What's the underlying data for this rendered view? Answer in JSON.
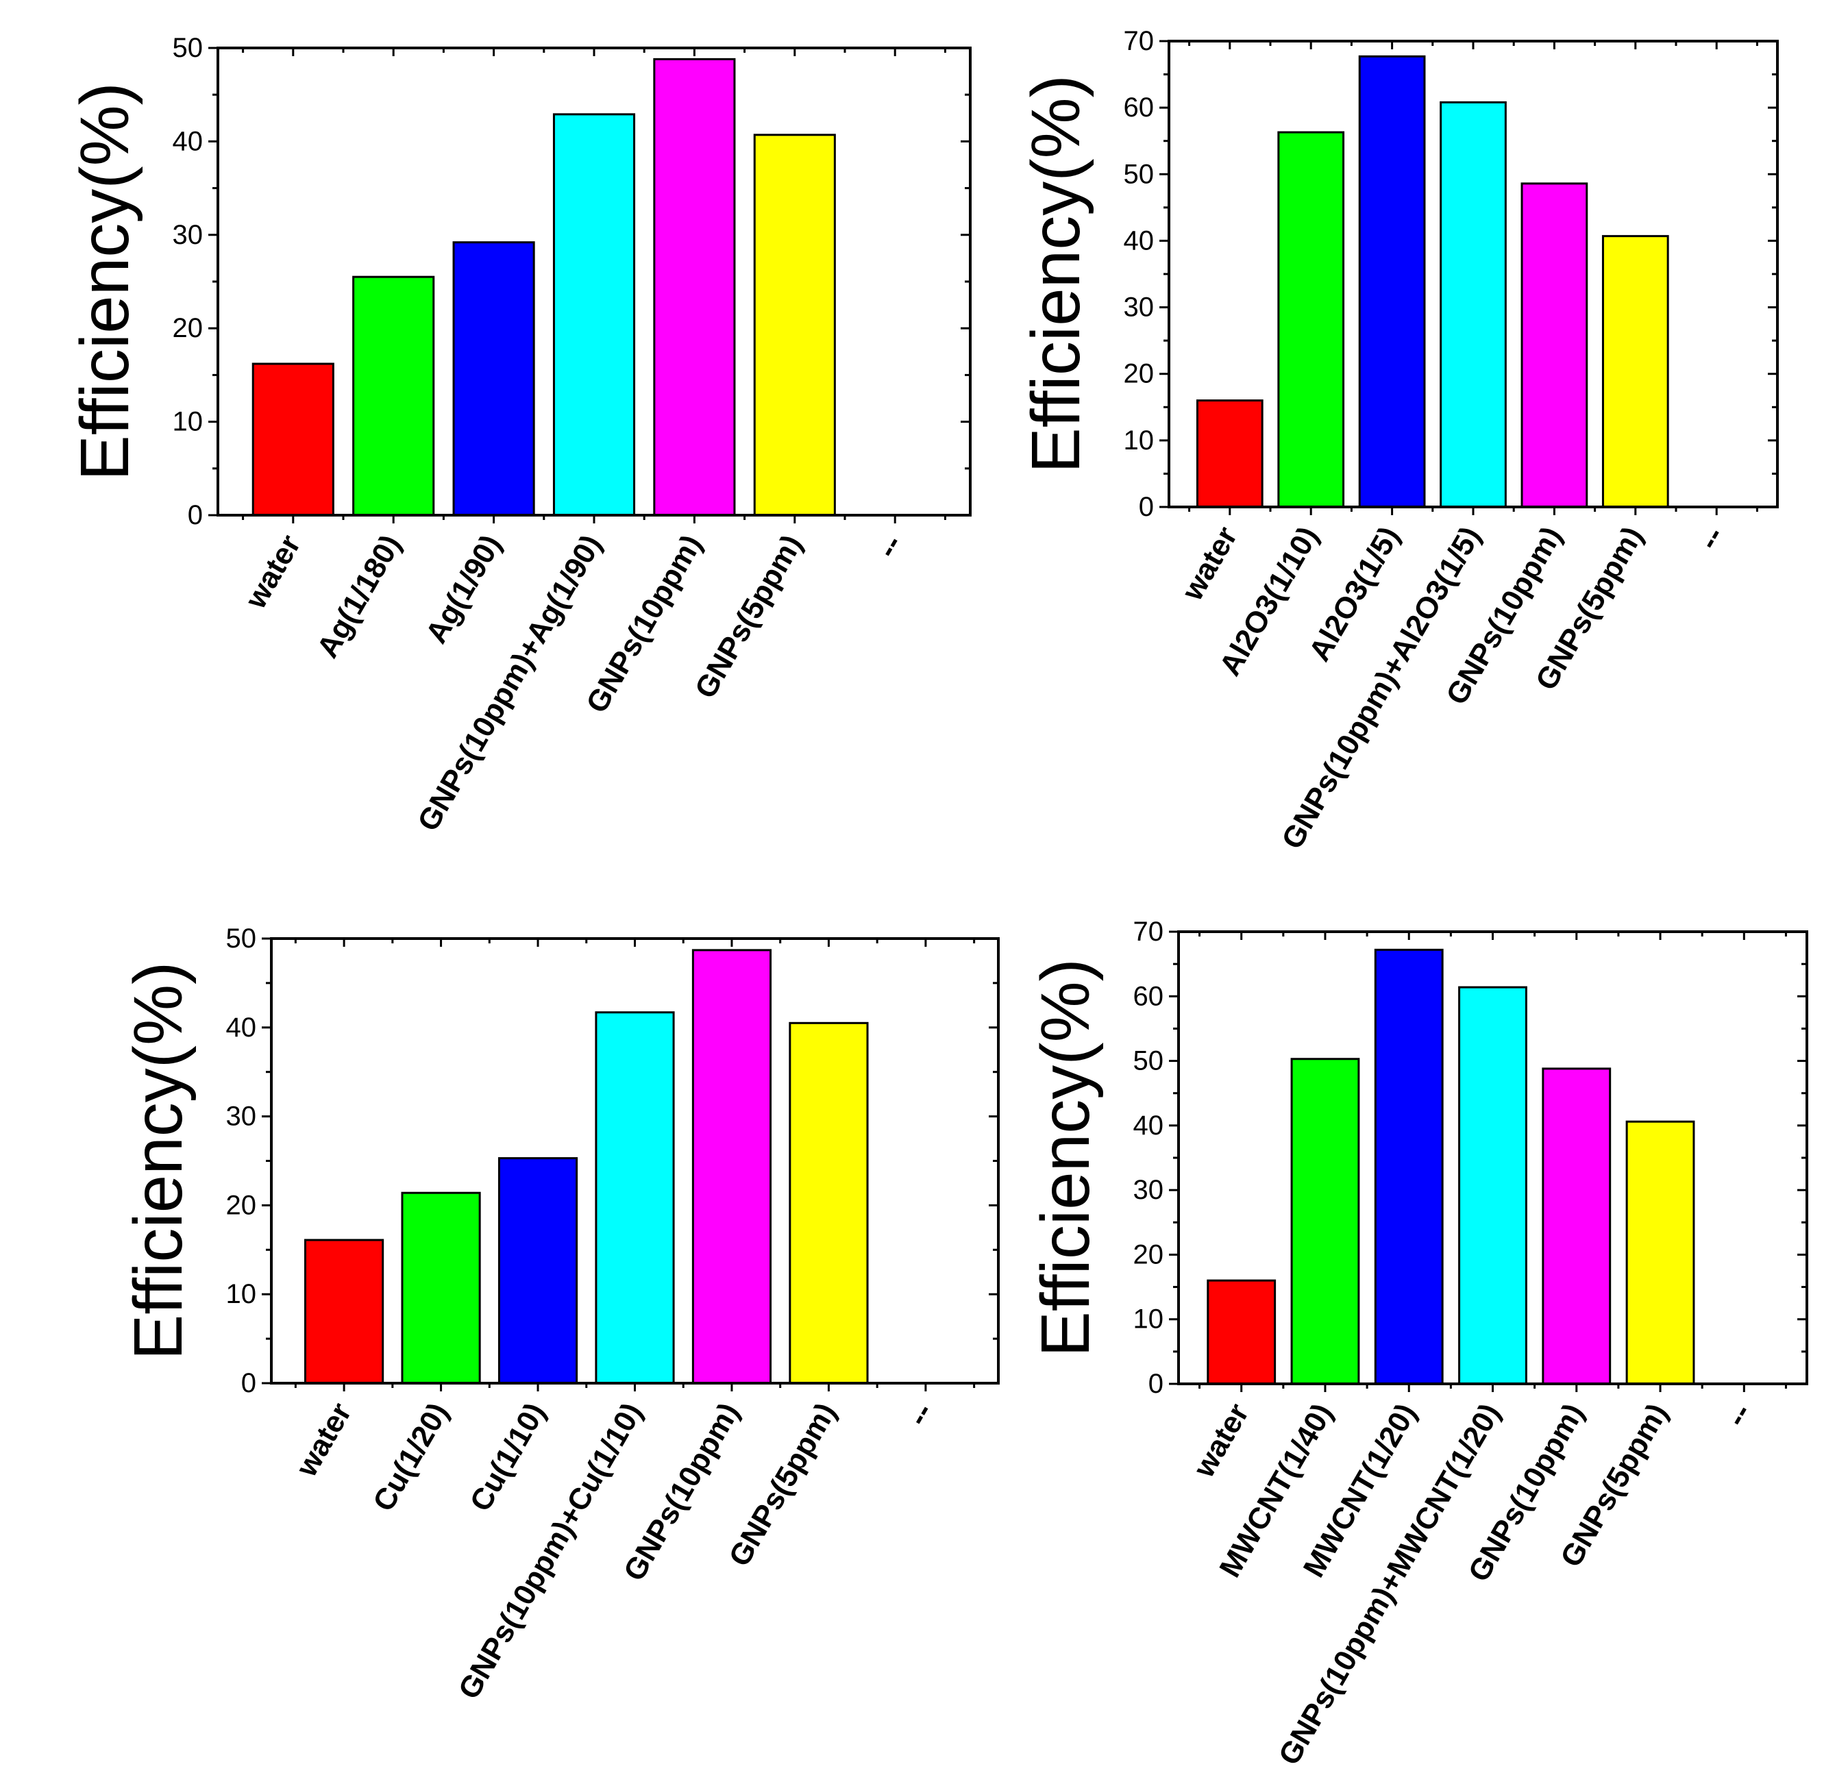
{
  "chart_data": [
    {
      "type": "bar",
      "title": "",
      "xlabel": "",
      "ylabel": "Efficiency(%)",
      "ylim": [
        0,
        50
      ],
      "yticks": [
        0,
        10,
        20,
        30,
        40,
        50
      ],
      "categories": [
        "water",
        "Ag(1/180)",
        "Ag(1/90)",
        "GNPs(10ppm)+Ag(1/90)",
        "GNPs(10ppm)",
        "GNPs(5ppm)",
        "--"
      ],
      "values": [
        16.2,
        25.5,
        29.2,
        42.9,
        48.8,
        40.7,
        null
      ],
      "colors": [
        "#ff0000",
        "#00ff00",
        "#0000ff",
        "#00ffff",
        "#ff00ff",
        "#ffff00",
        null
      ]
    },
    {
      "type": "bar",
      "title": "",
      "xlabel": "",
      "ylabel": "Efficiency(%)",
      "ylim": [
        0,
        70
      ],
      "yticks": [
        0,
        10,
        20,
        30,
        40,
        50,
        60,
        70
      ],
      "categories": [
        "water",
        "Al2O3(1/10)",
        "Al2O3(1/5)",
        "GNPs(10ppm)+Al2O3(1/5)",
        "GNPs(10ppm)",
        "GNPs(5ppm)",
        "--"
      ],
      "values": [
        16.0,
        56.3,
        67.7,
        60.8,
        48.6,
        40.7,
        null
      ],
      "colors": [
        "#ff0000",
        "#00ff00",
        "#0000ff",
        "#00ffff",
        "#ff00ff",
        "#ffff00",
        null
      ]
    },
    {
      "type": "bar",
      "title": "",
      "xlabel": "",
      "ylabel": "Efficiency(%)",
      "ylim": [
        0,
        50
      ],
      "yticks": [
        0,
        10,
        20,
        30,
        40,
        50
      ],
      "categories": [
        "water",
        "Cu(1/20)",
        "Cu(1/10)",
        "GNPs(10ppm)+Cu(1/10)",
        "GNPs(10ppm)",
        "GNPs(5ppm)",
        "--"
      ],
      "values": [
        16.1,
        21.4,
        25.3,
        41.7,
        48.7,
        40.5,
        null
      ],
      "colors": [
        "#ff0000",
        "#00ff00",
        "#0000ff",
        "#00ffff",
        "#ff00ff",
        "#ffff00",
        null
      ]
    },
    {
      "type": "bar",
      "title": "",
      "xlabel": "",
      "ylabel": "Efficiency(%)",
      "ylim": [
        0,
        70
      ],
      "yticks": [
        0,
        10,
        20,
        30,
        40,
        50,
        60,
        70
      ],
      "categories": [
        "water",
        "MWCNT(1/40)",
        "MWCNT(1/20)",
        "GNPs(10ppm)+MWCNT(1/20)",
        "GNPs(10ppm)",
        "GNPs(5ppm)",
        "--"
      ],
      "values": [
        16.0,
        50.3,
        67.2,
        61.4,
        48.8,
        40.6,
        null
      ],
      "colors": [
        "#ff0000",
        "#00ff00",
        "#0000ff",
        "#00ffff",
        "#ff00ff",
        "#ffff00",
        null
      ]
    }
  ]
}
